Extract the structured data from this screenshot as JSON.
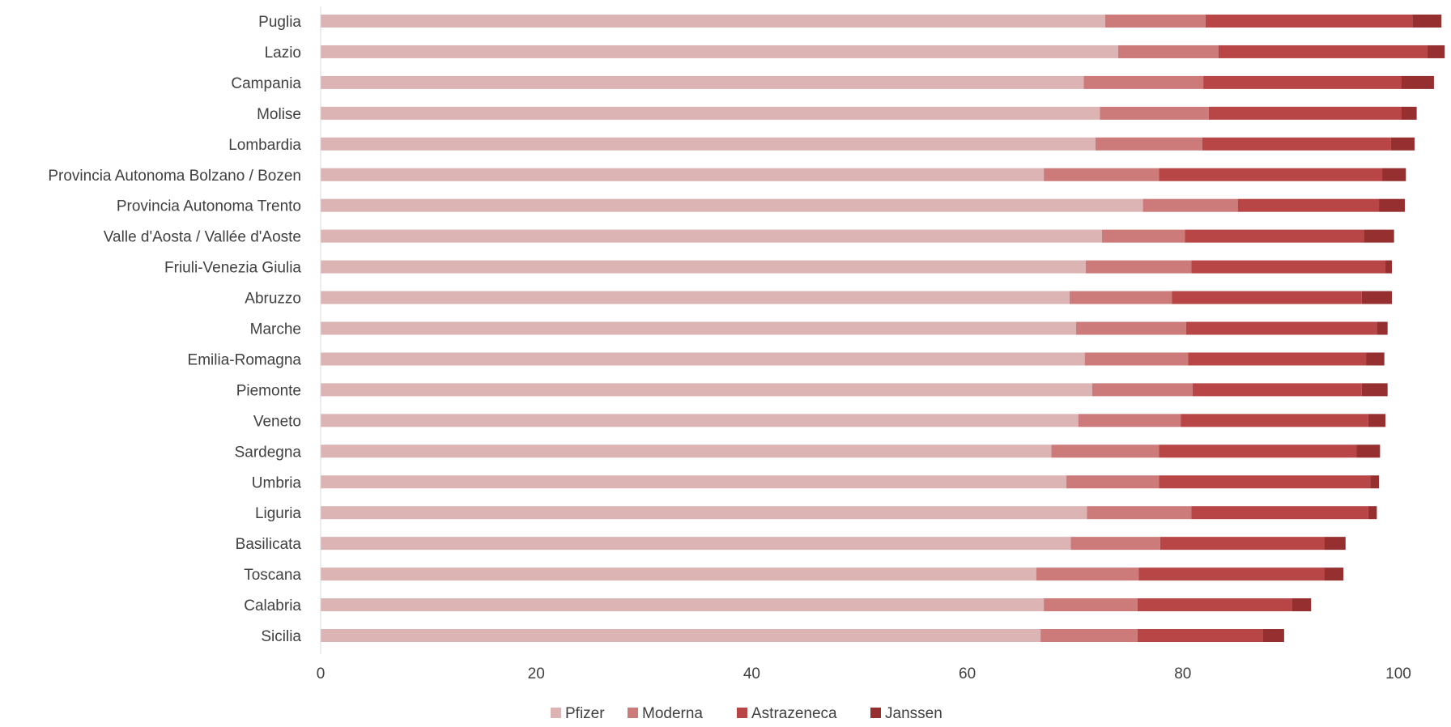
{
  "chart_data": {
    "type": "bar",
    "orientation": "horizontal",
    "stacked": true,
    "title": "",
    "xlabel": "",
    "ylabel": "",
    "xlim": [
      0,
      105
    ],
    "x_ticks": [
      "0",
      "20",
      "40",
      "60",
      "80",
      "100"
    ],
    "grid": false,
    "legend_position": "bottom",
    "categories": [
      "Puglia",
      "Lazio",
      "Campania",
      "Molise",
      "Lombardia",
      "Provincia Autonoma Bolzano / Bozen",
      "Provincia Autonoma Trento",
      "Valle d'Aosta / Vallée d'Aoste",
      "Friuli-Venezia Giulia",
      "Abruzzo",
      "Marche",
      "Emilia-Romagna",
      "Piemonte",
      "Veneto",
      "Sardegna",
      "Umbria",
      "Liguria",
      "Basilicata",
      "Toscana",
      "Calabria",
      "Sicilia"
    ],
    "series": [
      {
        "name": "Pfizer",
        "color": "#dcb4b4",
        "values": [
          72.8,
          74.0,
          70.8,
          72.3,
          71.9,
          67.1,
          76.3,
          72.5,
          71.0,
          69.5,
          70.1,
          70.9,
          71.6,
          70.3,
          67.8,
          69.2,
          71.1,
          69.6,
          66.4,
          67.1,
          66.8
        ]
      },
      {
        "name": "Moderna",
        "color": "#cc7a7a",
        "values": [
          9.3,
          9.3,
          11.1,
          10.1,
          9.9,
          10.7,
          8.8,
          7.7,
          9.8,
          9.5,
          10.2,
          9.6,
          9.3,
          9.5,
          10.0,
          8.6,
          9.7,
          8.3,
          9.5,
          8.7,
          9.0
        ]
      },
      {
        "name": "Astrazeneca",
        "color": "#b84646",
        "values": [
          19.2,
          19.4,
          18.4,
          17.9,
          17.5,
          20.7,
          13.1,
          16.6,
          18.0,
          17.6,
          17.7,
          16.5,
          15.7,
          17.4,
          18.3,
          19.6,
          16.4,
          15.2,
          17.2,
          14.3,
          11.6
        ]
      },
      {
        "name": "Janssen",
        "color": "#963030",
        "values": [
          2.7,
          1.6,
          3.0,
          1.4,
          2.2,
          2.2,
          2.4,
          2.8,
          0.6,
          2.8,
          1.0,
          1.7,
          2.4,
          1.6,
          2.2,
          0.8,
          0.8,
          2.0,
          1.8,
          1.8,
          2.0
        ]
      }
    ]
  }
}
